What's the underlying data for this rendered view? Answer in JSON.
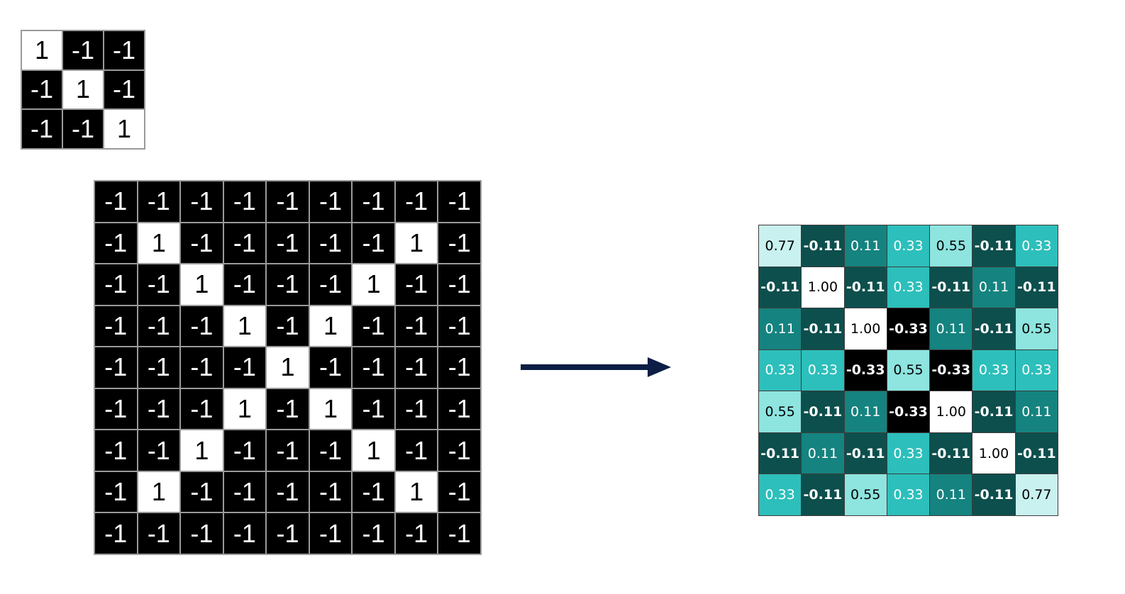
{
  "kernel": {
    "rows": [
      [
        "1",
        "-1",
        "-1"
      ],
      [
        "-1",
        "1",
        "-1"
      ],
      [
        "-1",
        "-1",
        "1"
      ]
    ]
  },
  "input_image": {
    "rows": [
      [
        "-1",
        "-1",
        "-1",
        "-1",
        "-1",
        "-1",
        "-1",
        "-1",
        "-1"
      ],
      [
        "-1",
        "1",
        "-1",
        "-1",
        "-1",
        "-1",
        "-1",
        "1",
        "-1"
      ],
      [
        "-1",
        "-1",
        "1",
        "-1",
        "-1",
        "-1",
        "1",
        "-1",
        "-1"
      ],
      [
        "-1",
        "-1",
        "-1",
        "1",
        "-1",
        "1",
        "-1",
        "-1",
        "-1"
      ],
      [
        "-1",
        "-1",
        "-1",
        "-1",
        "1",
        "-1",
        "-1",
        "-1",
        "-1"
      ],
      [
        "-1",
        "-1",
        "-1",
        "1",
        "-1",
        "1",
        "-1",
        "-1",
        "-1"
      ],
      [
        "-1",
        "-1",
        "1",
        "-1",
        "-1",
        "-1",
        "1",
        "-1",
        "-1"
      ],
      [
        "-1",
        "1",
        "-1",
        "-1",
        "-1",
        "-1",
        "-1",
        "1",
        "-1"
      ],
      [
        "-1",
        "-1",
        "-1",
        "-1",
        "-1",
        "-1",
        "-1",
        "-1",
        "-1"
      ]
    ]
  },
  "feature_map": {
    "rows": [
      [
        "0.77",
        "-0.11",
        "0.11",
        "0.33",
        "0.55",
        "-0.11",
        "0.33"
      ],
      [
        "-0.11",
        "1.00",
        "-0.11",
        "0.33",
        "-0.11",
        "0.11",
        "-0.11"
      ],
      [
        "0.11",
        "-0.11",
        "1.00",
        "-0.33",
        "0.11",
        "-0.11",
        "0.55"
      ],
      [
        "0.33",
        "0.33",
        "-0.33",
        "0.55",
        "-0.33",
        "0.33",
        "0.33"
      ],
      [
        "0.55",
        "-0.11",
        "0.11",
        "-0.33",
        "1.00",
        "-0.11",
        "0.11"
      ],
      [
        "-0.11",
        "0.11",
        "-0.11",
        "0.33",
        "-0.11",
        "1.00",
        "-0.11"
      ],
      [
        "0.33",
        "-0.11",
        "0.55",
        "0.33",
        "0.11",
        "-0.11",
        "0.77"
      ]
    ],
    "colors": {
      "1.00": "#ffffff",
      "0.77": "#c8f1ef",
      "0.55": "#8ee4df",
      "0.33": "#2dbfbb",
      "0.11": "#15837f",
      "-0.11": "#0d4f4d",
      "-0.33": "#000000"
    }
  },
  "arrow_color": "#0c1e45"
}
